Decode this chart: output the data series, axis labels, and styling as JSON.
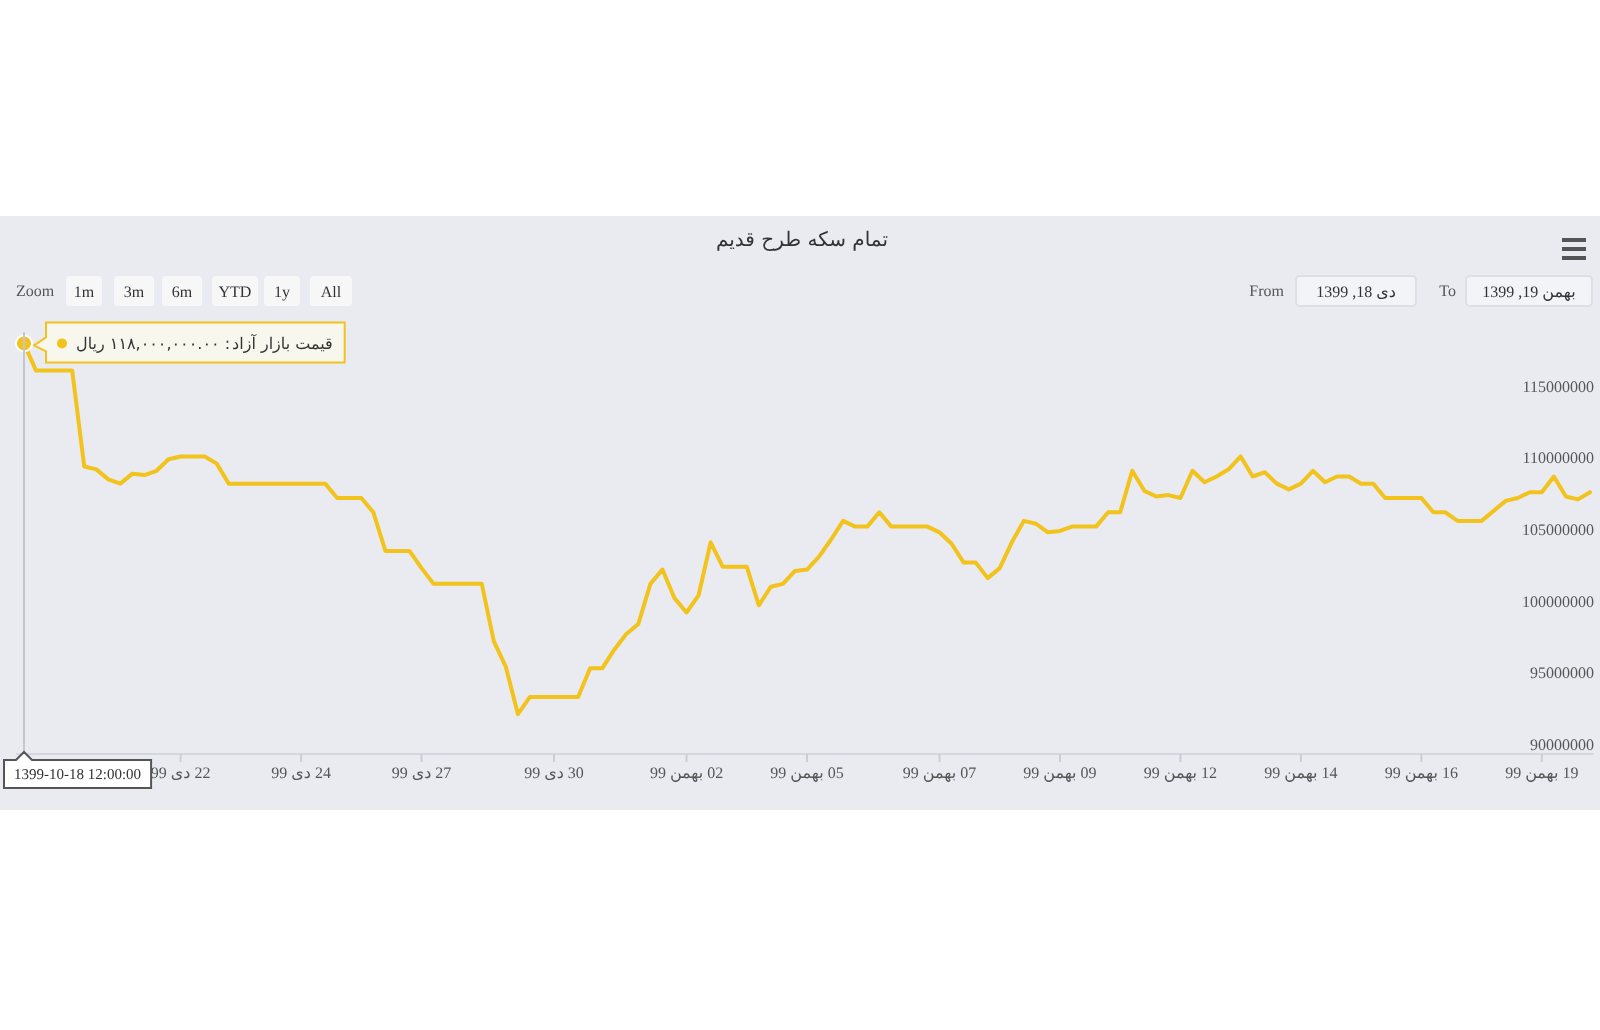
{
  "chart_data": {
    "type": "line",
    "title": "تمام سکه طرح قدیم",
    "categories": [
      null,
      null,
      null,
      null,
      null,
      null,
      null,
      null,
      null,
      null,
      null,
      null,
      null,
      "22 دی 99",
      null,
      null,
      null,
      null,
      null,
      null,
      null,
      null,
      null,
      "24 دی 99",
      null,
      null,
      null,
      null,
      null,
      null,
      null,
      null,
      null,
      "27 دی 99",
      null,
      null,
      null,
      null,
      null,
      null,
      null,
      null,
      null,
      null,
      "30 دی 99",
      null,
      null,
      null,
      null,
      null,
      null,
      null,
      null,
      null,
      null,
      "02 بهمن 99",
      null,
      null,
      null,
      null,
      null,
      null,
      null,
      null,
      null,
      "05 بهمن 99",
      null,
      null,
      null,
      null,
      null,
      null,
      null,
      null,
      null,
      null,
      "07 بهمن 99",
      null,
      null,
      null,
      null,
      null,
      null,
      null,
      null,
      null,
      "09 بهمن 99",
      null,
      null,
      null,
      null,
      null,
      null,
      null,
      null,
      null,
      "12 بهمن 99",
      null,
      null,
      null,
      null,
      null,
      null,
      null,
      null,
      null,
      "14 بهمن 99",
      null,
      null,
      null,
      null,
      null,
      null,
      null,
      null,
      null,
      "16 بهمن 99",
      null,
      null,
      null,
      null,
      null,
      null,
      null,
      null,
      null,
      "19 بهمن 99",
      null,
      null,
      null,
      null
    ],
    "series": [
      {
        "name": "قیمت بازار آزاد",
        "color": "#f2c31c",
        "values": [
          118000000,
          116100000,
          116100000,
          116100000,
          116100000,
          109400000,
          109200000,
          108500000,
          108200000,
          108900000,
          108800000,
          109100000,
          109900000,
          110100000,
          110100000,
          110100000,
          109600000,
          108200000,
          108200000,
          108200000,
          108200000,
          108200000,
          108200000,
          108200000,
          108200000,
          108200000,
          107200000,
          107200000,
          107200000,
          106200000,
          103500000,
          103500000,
          103500000,
          102300000,
          101200000,
          101200000,
          101200000,
          101200000,
          101200000,
          97200000,
          95400000,
          92100000,
          93300000,
          93300000,
          93300000,
          93300000,
          93300000,
          95300000,
          95300000,
          96600000,
          97700000,
          98400000,
          101200000,
          102200000,
          100200000,
          99200000,
          100400000,
          104100000,
          102400000,
          102400000,
          102400000,
          99700000,
          101000000,
          101200000,
          102100000,
          102200000,
          103100000,
          104300000,
          105600000,
          105200000,
          105200000,
          106200000,
          105200000,
          105200000,
          105200000,
          105200000,
          104800000,
          104000000,
          102700000,
          102700000,
          101600000,
          102300000,
          104100000,
          105600000,
          105400000,
          104800000,
          104900000,
          105200000,
          105200000,
          105200000,
          106200000,
          106200000,
          109100000,
          107700000,
          107300000,
          107400000,
          107200000,
          109100000,
          108300000,
          108700000,
          109200000,
          110100000,
          108700000,
          109000000,
          108200000,
          107800000,
          108200000,
          109100000,
          108300000,
          108700000,
          108700000,
          108200000,
          108200000,
          107200000,
          107200000,
          107200000,
          107200000,
          106200000,
          106200000,
          105600000,
          105600000,
          105600000,
          106300000,
          107000000,
          107200000,
          107600000,
          107600000,
          108700000,
          107300000,
          107100000,
          107600000
        ]
      }
    ],
    "ylim": [
      85400000,
      126900000
    ],
    "yticks": [
      90000000,
      95000000,
      100000000,
      105000000,
      110000000,
      115000000
    ],
    "annotations": [
      ": ۱۱۸,۰۰۰,۰۰۰.۰۰ ریال",
      "1399-10-18 12:00:00",
      "Zoom",
      "1m",
      "3m",
      "6m",
      "YTD",
      "1y",
      "All",
      "From",
      "دی 18, 1399",
      "To",
      "بهمن 19, 1399"
    ]
  }
}
